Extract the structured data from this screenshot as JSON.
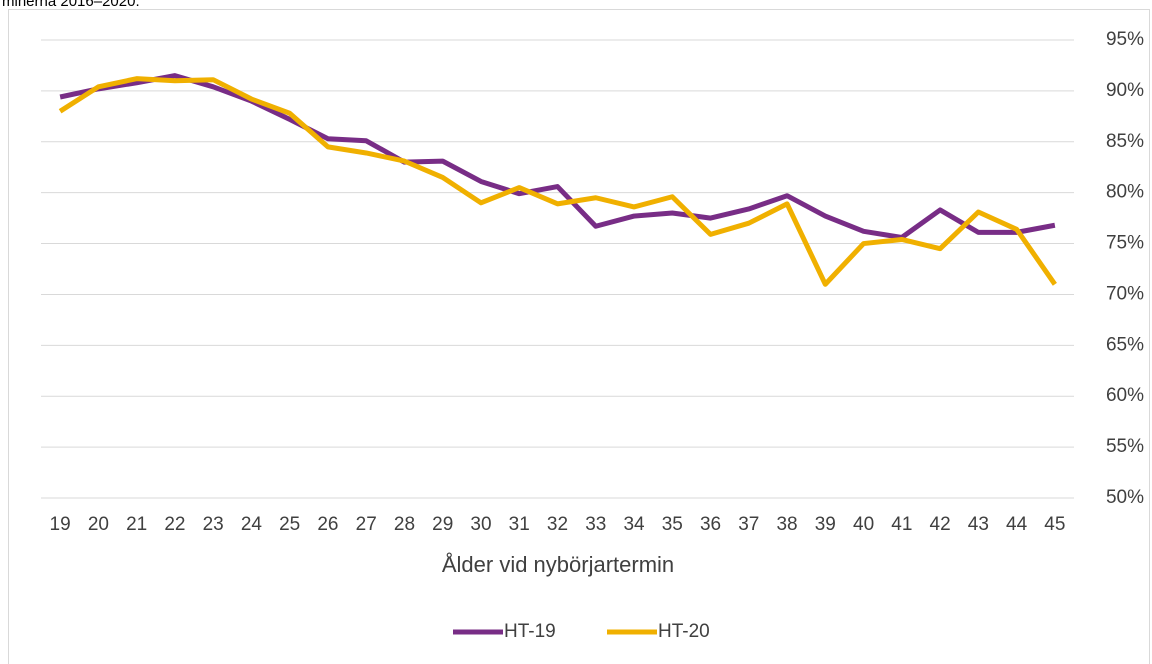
{
  "caption": "minerna 2016–2020.",
  "chart_data": {
    "type": "line",
    "x_label": "Ålder vid nybörjartermin",
    "categories": [
      "19",
      "20",
      "21",
      "22",
      "23",
      "24",
      "25",
      "26",
      "27",
      "28",
      "29",
      "30",
      "31",
      "32",
      "33",
      "34",
      "35",
      "36",
      "37",
      "38",
      "39",
      "40",
      "41",
      "42",
      "43",
      "44",
      "45"
    ],
    "series": [
      {
        "name": "HT-19",
        "color": "#782d86",
        "values": [
          89.4,
          90.2,
          90.8,
          91.5,
          90.4,
          89.0,
          87.2,
          85.3,
          85.1,
          83.0,
          83.1,
          81.1,
          79.9,
          80.6,
          76.7,
          77.7,
          78.0,
          77.5,
          78.4,
          79.7,
          77.7,
          76.2,
          75.6,
          78.3,
          76.1,
          76.1,
          76.8
        ]
      },
      {
        "name": "HT-20",
        "color": "#f0b000",
        "values": [
          88.0,
          90.4,
          91.2,
          91.0,
          91.1,
          89.2,
          87.8,
          84.5,
          83.9,
          83.1,
          81.5,
          79.0,
          80.5,
          78.9,
          79.5,
          78.6,
          79.6,
          75.9,
          77.0,
          78.9,
          71.0,
          75.0,
          75.4,
          74.5,
          78.1,
          76.4,
          71.0
        ]
      }
    ],
    "ylim": [
      50,
      95
    ],
    "yticks": [
      {
        "value": 50,
        "label": "50%"
      },
      {
        "value": 55,
        "label": "55%"
      },
      {
        "value": 60,
        "label": "60%"
      },
      {
        "value": 65,
        "label": "65%"
      },
      {
        "value": 70,
        "label": "70%"
      },
      {
        "value": 75,
        "label": "75%"
      },
      {
        "value": 80,
        "label": "80%"
      },
      {
        "value": 85,
        "label": "85%"
      },
      {
        "value": 90,
        "label": "90%"
      },
      {
        "value": 95,
        "label": "95%"
      }
    ],
    "grid": true,
    "y_axis_side": "right",
    "legend": "bottom"
  }
}
